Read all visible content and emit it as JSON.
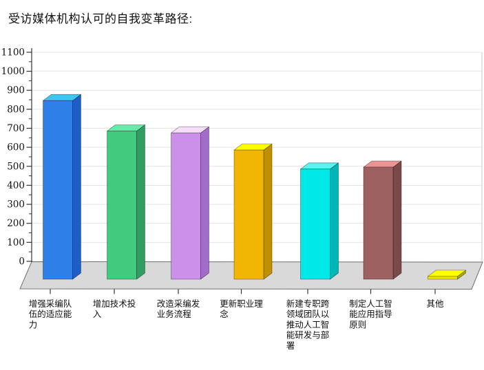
{
  "page": {
    "title": "受访媒体机构认可的自我变革路径:"
  },
  "chart_data": {
    "type": "bar",
    "variant": "3d-column",
    "title": "受访媒体机构认可的自我变革路径:",
    "categories": [
      "增强采编队伍的适应能力",
      "增加技术投入",
      "改造采编发业务流程",
      "更新职业理念",
      "新建专职跨领域团队以推动人工智能研发与部署",
      "制定人工智能应用指导原则",
      "其他"
    ],
    "values": [
      860,
      700,
      690,
      600,
      500,
      510,
      15
    ],
    "ylim": [
      0,
      1100
    ],
    "ytick_step": 100,
    "yticks": [
      0,
      100,
      200,
      300,
      400,
      500,
      600,
      700,
      800,
      900,
      1000,
      1100
    ],
    "minor_tick_step": 50,
    "grid": true,
    "legend": "none",
    "xlabel": "",
    "ylabel": "",
    "bar_colors": [
      {
        "name": "blue",
        "front": "#2E7FE8",
        "top": "#3EC6F2",
        "side": "#1E5EC8"
      },
      {
        "name": "green",
        "front": "#41CB7E",
        "top": "#68E8A9",
        "side": "#2F9E60"
      },
      {
        "name": "violet",
        "front": "#CA90EA",
        "top": "#F6DFF6",
        "side": "#A26CC8"
      },
      {
        "name": "amber",
        "front": "#F1B503",
        "top": "#FFFF00",
        "side": "#BF8F02"
      },
      {
        "name": "cyan",
        "front": "#00E9E9",
        "top": "#5CF2F2",
        "side": "#00B5B5"
      },
      {
        "name": "brown",
        "front": "#9E6161",
        "top": "#EB9494",
        "side": "#7A4949"
      },
      {
        "name": "yellow",
        "front": "#EFE600",
        "top": "#FFFF00",
        "side": "#AFA800"
      }
    ],
    "floor_color": "#D9D9D9",
    "gridline_color": "#E4E4E4",
    "axis_color": "#333333",
    "background": "#FFFFFF"
  }
}
